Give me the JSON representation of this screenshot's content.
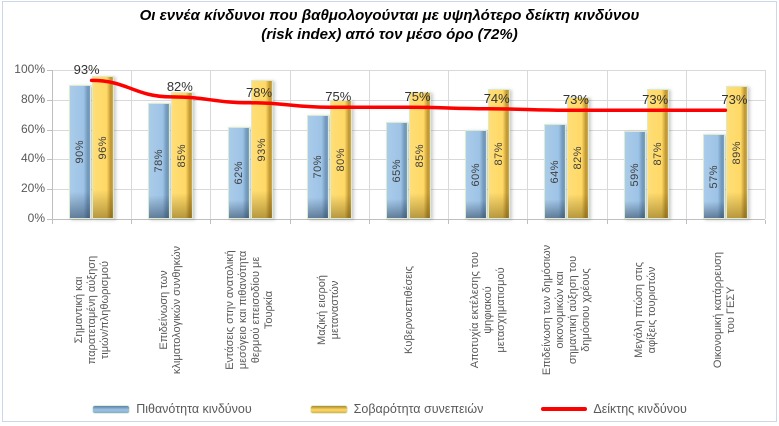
{
  "title": "Οι εννέα κίνδυνοι που βαθμολογούνται με υψηλότερο δείκτη κινδύνου\n(risk index) από τον μέσο όρο (72%)",
  "chart_data": {
    "type": "bar",
    "subtype": "grouped-bars-with-line-overlay",
    "title": "Οι εννέα κίνδυνοι που βαθμολογούνται με υψηλότερο δείκτη κινδύνου (risk index) από τον μέσο όρο (72%)",
    "average_reference": "72%",
    "categories": [
      "Σημαντική και\nπαρατεταμένη αύξηση\nτιμών/πληθωρισμού",
      "Επιδείνωση των\nκλιματολογικών συνθηκών",
      "Εντάσεις στην ανατολική\nμεσόγειο και πιθανότητα\nθερμού επεισοδίου με\nΤουρκία",
      "Μαζική εισροή\nμεταναστών",
      "Κυβερνοεπιθέσεις",
      "Αποτυχία εκτέλεσης του\nψηφιακού\nμετασχηματισμού",
      "Επιδείνωση των δημόσιων\nοικονομικών και\nσημαντική αύξηση του\nδημόσιου χρέους",
      "Μεγάλη πτώση στις\nαφίξεις τουριστών",
      "Οικονομική κατάρρευση\nτου ΓΕΣΥ"
    ],
    "series": [
      {
        "name": "Πιθανότητα κινδύνου",
        "type": "bar",
        "color": "#9DC3E6",
        "values": [
          90,
          78,
          62,
          70,
          65,
          60,
          64,
          59,
          57
        ],
        "data_labels": [
          "90%",
          "78%",
          "62%",
          "70%",
          "65%",
          "60%",
          "64%",
          "59%",
          "57%"
        ]
      },
      {
        "name": "Σοβαρότητα συνεπειών",
        "type": "bar",
        "color": "#FFD966",
        "values": [
          96,
          85,
          93,
          80,
          85,
          87,
          82,
          87,
          89
        ],
        "data_labels": [
          "96%",
          "85%",
          "93%",
          "80%",
          "85%",
          "87%",
          "82%",
          "87%",
          "89%"
        ]
      },
      {
        "name": "Δείκτης κινδύνου",
        "type": "line",
        "color": "#FF0000",
        "values": [
          93,
          82,
          78,
          75,
          75,
          74,
          73,
          73,
          73
        ],
        "data_labels": [
          "93%",
          "82%",
          "78%",
          "75%",
          "75%",
          "74%",
          "73%",
          "73%",
          "73%"
        ]
      }
    ],
    "xlabel": "",
    "ylabel": "",
    "ylim": [
      0,
      100
    ],
    "yticks": {
      "values": [
        0,
        20,
        40,
        60,
        80,
        100
      ],
      "labels": [
        "0%",
        "20%",
        "40%",
        "60%",
        "80%",
        "100%"
      ]
    },
    "grid": true,
    "legend_position": "bottom"
  },
  "colors": {
    "bar_probability": "#9DC3E6",
    "bar_severity": "#FFD966",
    "risk_index_line": "#FF0000",
    "axis_text": "#595959",
    "data_label_text": "#3F3F3F",
    "gridline": "#D9D9D9",
    "chart_border": "#CBD8EA"
  }
}
